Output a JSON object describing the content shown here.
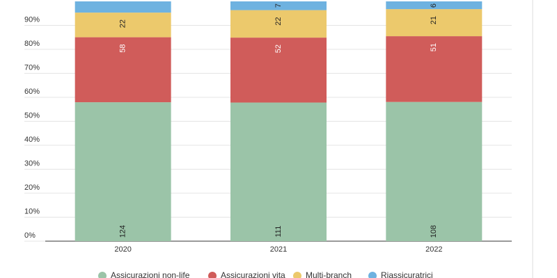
{
  "chart_data": {
    "type": "bar",
    "stack": "percent",
    "categories": [
      "2020",
      "2021",
      "2022"
    ],
    "series": [
      {
        "name": "Assicurazioni non-life",
        "color": "#9bc4a8",
        "values": [
          124,
          111,
          108
        ]
      },
      {
        "name": "Assicurazioni vita",
        "color": "#d05c5a",
        "values": [
          58,
          52,
          51
        ]
      },
      {
        "name": "Multi-branch",
        "color": "#ecc96c",
        "values": [
          22,
          22,
          21
        ]
      },
      {
        "name": "Riassicuratrici",
        "color": "#6eb2e0",
        "values": [
          10,
          7,
          6
        ],
        "value_labels": [
          null,
          "7",
          "6"
        ]
      }
    ],
    "ylim": [
      0,
      100
    ],
    "yticks": [
      {
        "value": 0,
        "label": "0%"
      },
      {
        "value": 10,
        "label": "10%"
      },
      {
        "value": 20,
        "label": "20%"
      },
      {
        "value": 30,
        "label": "30%"
      },
      {
        "value": 40,
        "label": "40%"
      },
      {
        "value": 50,
        "label": "50%"
      },
      {
        "value": 60,
        "label": "60%"
      },
      {
        "value": 70,
        "label": "70%"
      },
      {
        "value": 80,
        "label": "80%"
      },
      {
        "value": 90,
        "label": "90%"
      }
    ],
    "grid": true,
    "legend": "bottom"
  }
}
